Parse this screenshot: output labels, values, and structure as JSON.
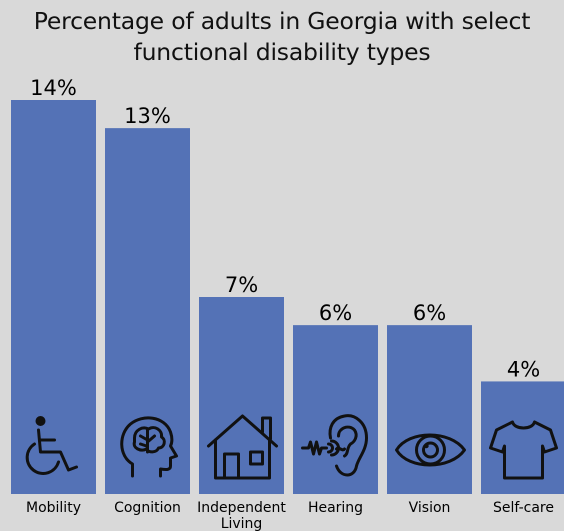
{
  "chart_data": {
    "type": "bar",
    "title": "Percentage of adults in Georgia with select\nfunctional disability types",
    "categories": [
      "Mobility",
      "Cognition",
      "Independent\nLiving",
      "Hearing",
      "Vision",
      "Self-care"
    ],
    "values": [
      14,
      13,
      7,
      6,
      6,
      4
    ],
    "value_labels": [
      "14%",
      "13%",
      "7%",
      "6%",
      "6%",
      "4%"
    ],
    "icons": [
      "wheelchair-icon",
      "brain-head-icon",
      "house-icon",
      "ear-icon",
      "eye-icon",
      "shirt-icon"
    ],
    "ylim": [
      0,
      14
    ],
    "grid": false,
    "bar_color": "#5472b6",
    "background_color": "#d9d9d9"
  }
}
